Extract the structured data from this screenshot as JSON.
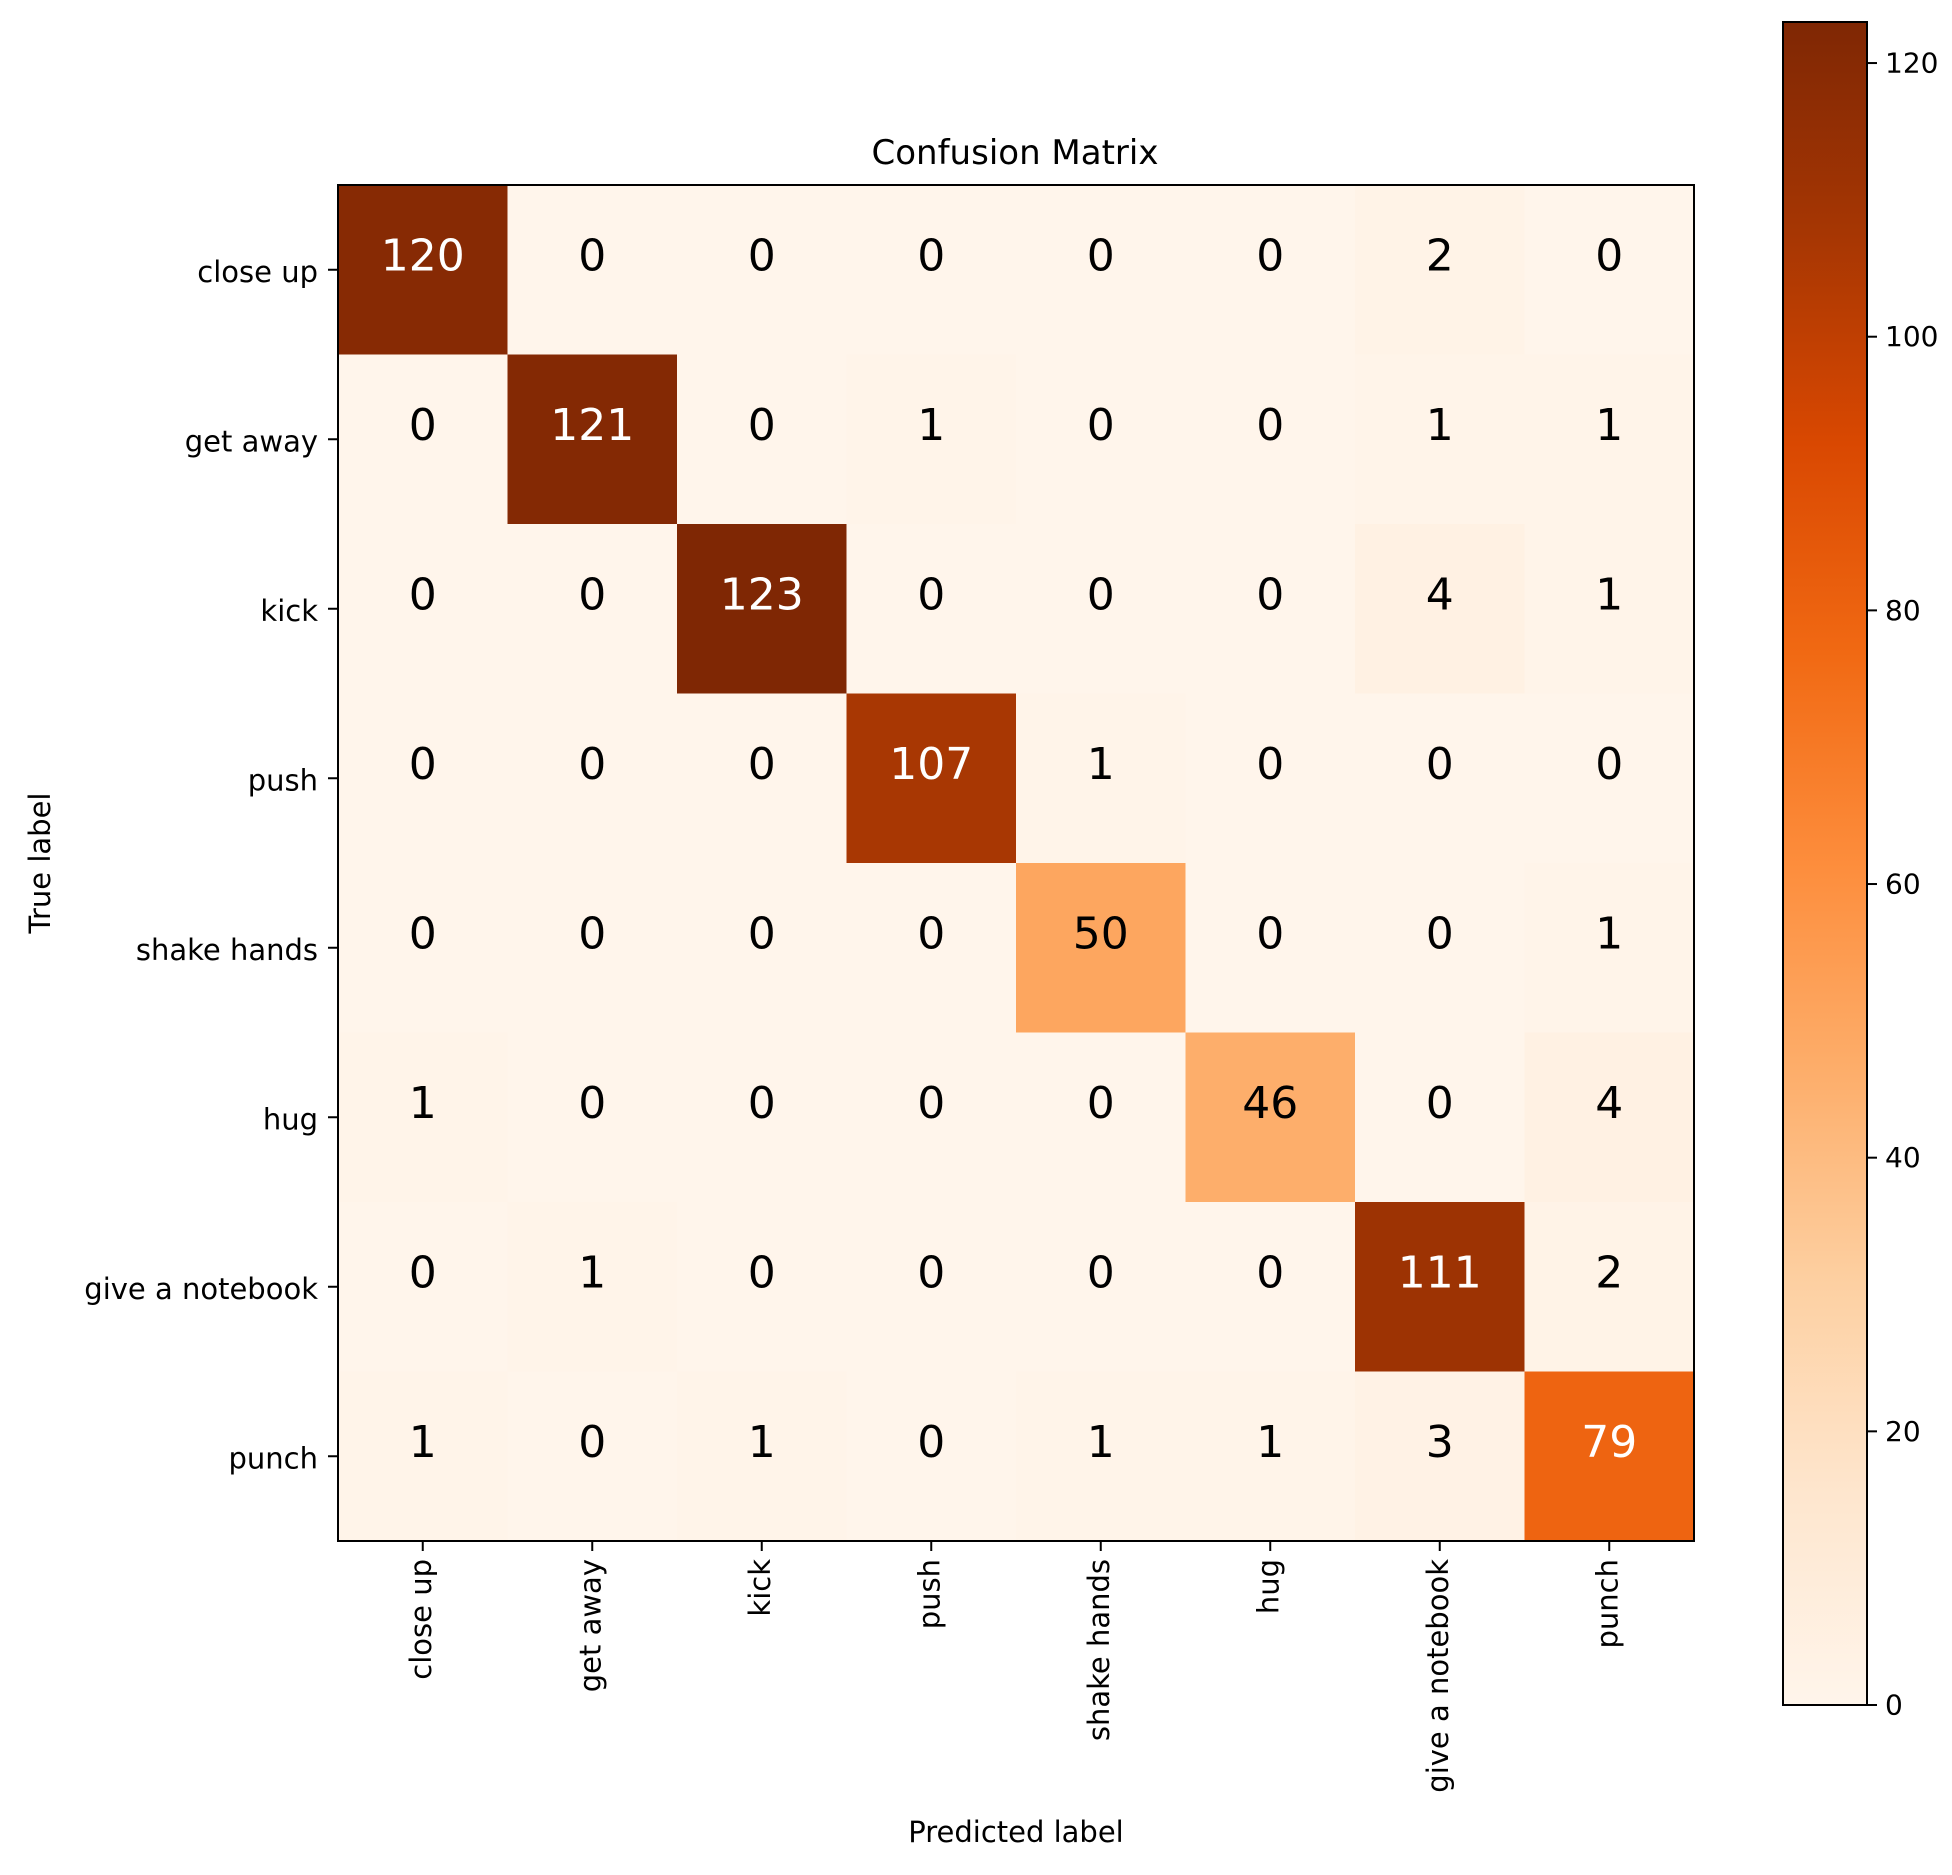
{
  "chart_data": {
    "type": "heatmap",
    "title": "Confusion Matrix",
    "xlabel": "Predicted label",
    "ylabel": "True label",
    "x_categories": [
      "close up",
      "get away",
      "kick",
      "push",
      "shake hands",
      "hug",
      "give a notebook",
      "punch"
    ],
    "y_categories": [
      "close up",
      "get away",
      "kick",
      "push",
      "shake hands",
      "hug",
      "give a notebook",
      "punch"
    ],
    "values": [
      [
        120,
        0,
        0,
        0,
        0,
        0,
        2,
        0
      ],
      [
        0,
        121,
        0,
        1,
        0,
        0,
        1,
        1
      ],
      [
        0,
        0,
        123,
        0,
        0,
        0,
        4,
        1
      ],
      [
        0,
        0,
        0,
        107,
        1,
        0,
        0,
        0
      ],
      [
        0,
        0,
        0,
        0,
        50,
        0,
        0,
        1
      ],
      [
        1,
        0,
        0,
        0,
        0,
        46,
        0,
        4
      ],
      [
        0,
        1,
        0,
        0,
        0,
        0,
        111,
        2
      ],
      [
        1,
        0,
        1,
        0,
        1,
        1,
        3,
        79
      ]
    ],
    "colormap": "Oranges",
    "colorbar": {
      "min": 0,
      "max": 123,
      "ticks": [
        0,
        20,
        40,
        60,
        80,
        100,
        120
      ]
    }
  }
}
